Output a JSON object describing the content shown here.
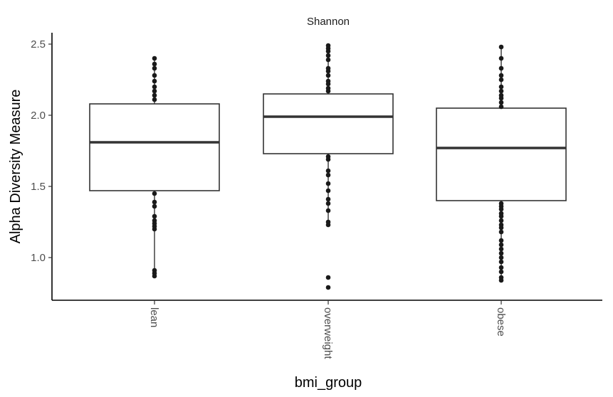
{
  "chart_data": {
    "type": "box",
    "title": "Shannon",
    "xlabel": "bmi_group",
    "ylabel": "Alpha Diversity Measure",
    "ylim": [
      0.7,
      2.58
    ],
    "yticks": [
      1.0,
      1.5,
      2.0,
      2.5
    ],
    "ytick_labels": [
      "1.0",
      "1.5",
      "2.0",
      "2.5"
    ],
    "categories": [
      "lean",
      "overweight",
      "obese"
    ],
    "grid": false,
    "legend": "none",
    "boxes": [
      {
        "name": "lean",
        "q1": 1.47,
        "median": 1.81,
        "q3": 2.08,
        "whisker_low": 0.87,
        "whisker_high": 2.4,
        "points": [
          0.87,
          0.89,
          0.91,
          1.2,
          1.22,
          1.24,
          1.26,
          1.29,
          1.36,
          1.39,
          1.45,
          2.11,
          2.14,
          2.17,
          2.2,
          2.24,
          2.28,
          2.33,
          2.36,
          2.4
        ]
      },
      {
        "name": "overweight",
        "q1": 1.73,
        "median": 1.99,
        "q3": 2.15,
        "whisker_low": 1.23,
        "whisker_high": 2.49,
        "points": [
          0.79,
          0.86,
          1.23,
          1.25,
          1.33,
          1.38,
          1.41,
          1.47,
          1.52,
          1.58,
          1.61,
          1.69,
          1.71,
          2.17,
          2.19,
          2.22,
          2.24,
          2.28,
          2.31,
          2.33,
          2.39,
          2.42,
          2.45,
          2.47,
          2.49
        ]
      },
      {
        "name": "obese",
        "q1": 1.4,
        "median": 1.77,
        "q3": 2.05,
        "whisker_low": 0.84,
        "whisker_high": 2.48,
        "points": [
          0.84,
          0.86,
          0.9,
          0.93,
          0.97,
          1.0,
          1.03,
          1.06,
          1.09,
          1.12,
          1.18,
          1.21,
          1.23,
          1.26,
          1.29,
          1.31,
          1.34,
          1.36,
          1.38,
          2.06,
          2.09,
          2.12,
          2.14,
          2.17,
          2.2,
          2.25,
          2.28,
          2.33,
          2.4,
          2.48
        ]
      }
    ],
    "colors": {
      "box_stroke": "#333333",
      "median": "#333333",
      "points": "#1a1a1a",
      "axis": "#000000"
    }
  }
}
